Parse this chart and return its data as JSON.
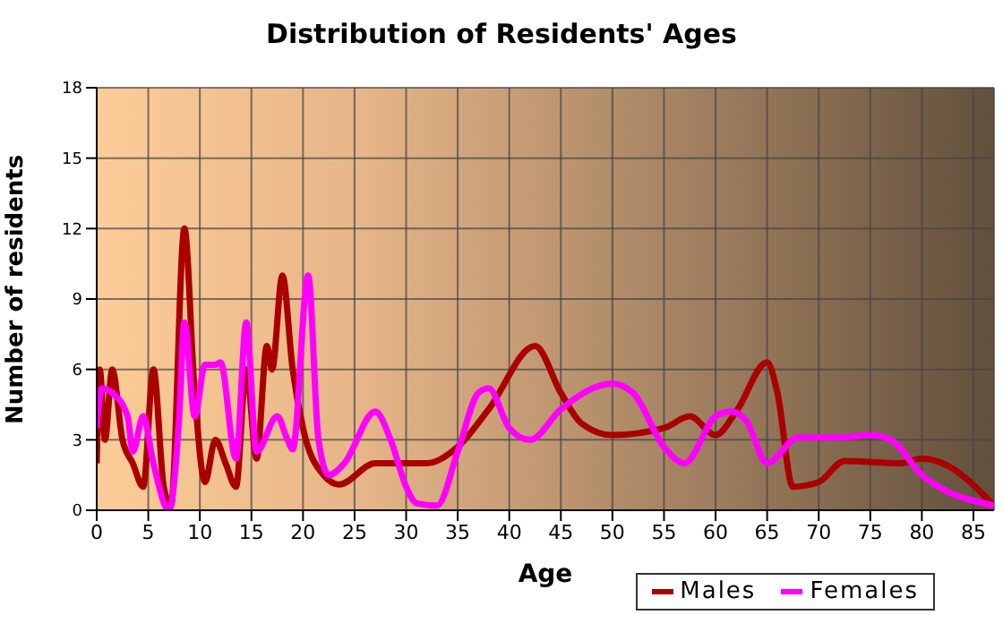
{
  "chart_data": {
    "type": "line",
    "title": "Distribution of Residents' Ages",
    "xlabel": "Age",
    "ylabel": "Number of residents",
    "xlim": [
      0,
      87
    ],
    "xticks": [
      0,
      5,
      10,
      15,
      20,
      25,
      30,
      35,
      40,
      45,
      50,
      55,
      60,
      65,
      70,
      75,
      80,
      85
    ],
    "ylim": [
      0,
      18
    ],
    "yticks": [
      0,
      3,
      6,
      9,
      12,
      15,
      18
    ],
    "grid": true,
    "legend": "bottom right",
    "marker": "none",
    "line_style": "solid",
    "series": [
      {
        "name": "Males",
        "color": "#aa0000",
        "x": [
          0,
          0.3,
          0.8,
          1.5,
          2.5,
          3.5,
          4.5,
          5.5,
          6.5,
          7.2,
          8.5,
          9.5,
          10.5,
          11.5,
          12.5,
          13.5,
          14.5,
          15.5,
          16.5,
          17,
          18,
          19,
          20,
          22,
          23.5,
          27,
          30,
          32,
          35,
          38,
          42.5,
          45,
          47,
          50,
          55,
          57.5,
          60,
          62,
          65,
          66,
          67.5,
          70,
          72.5,
          78,
          80,
          82,
          87
        ],
        "values": [
          2,
          6,
          3,
          6,
          3,
          2,
          1,
          6,
          1,
          0.2,
          12,
          5,
          1.2,
          3,
          2,
          1,
          6,
          2.2,
          7,
          6,
          10,
          6,
          3.5,
          1.5,
          1.1,
          2,
          2,
          2,
          2.7,
          4.3,
          7,
          5,
          3.7,
          3.2,
          3.5,
          4,
          3.2,
          4.2,
          6.3,
          5,
          1,
          1.2,
          2.1,
          2,
          2.2,
          2,
          0.2
        ]
      },
      {
        "name": "Females",
        "color": "#ff00ff",
        "x": [
          0,
          0.5,
          1.5,
          3,
          3.5,
          4.5,
          5.5,
          7,
          8,
          8.5,
          9.5,
          10.5,
          11.5,
          12,
          13.5,
          14.5,
          15.5,
          17.5,
          18.5,
          19,
          20.5,
          21.5,
          22.5,
          24,
          27,
          28.5,
          30,
          31,
          33,
          35,
          37,
          38,
          40,
          42,
          45,
          50,
          52,
          55,
          57,
          60,
          61.5,
          63,
          65,
          68,
          72,
          75,
          77,
          80,
          87
        ],
        "values": [
          3.5,
          5.2,
          5,
          4,
          2.5,
          4,
          2,
          0,
          4,
          8,
          4,
          6.2,
          6.2,
          6.3,
          2.2,
          8,
          2.5,
          4,
          3,
          2.6,
          10,
          3,
          1.5,
          2,
          4.2,
          3,
          1,
          0.3,
          0.2,
          2.5,
          5,
          5.2,
          3.5,
          3,
          4.3,
          5.4,
          5,
          2.7,
          2,
          4,
          4.2,
          3.8,
          2,
          3.1,
          3.1,
          3.2,
          3,
          1.5,
          0.2
        ]
      }
    ]
  }
}
